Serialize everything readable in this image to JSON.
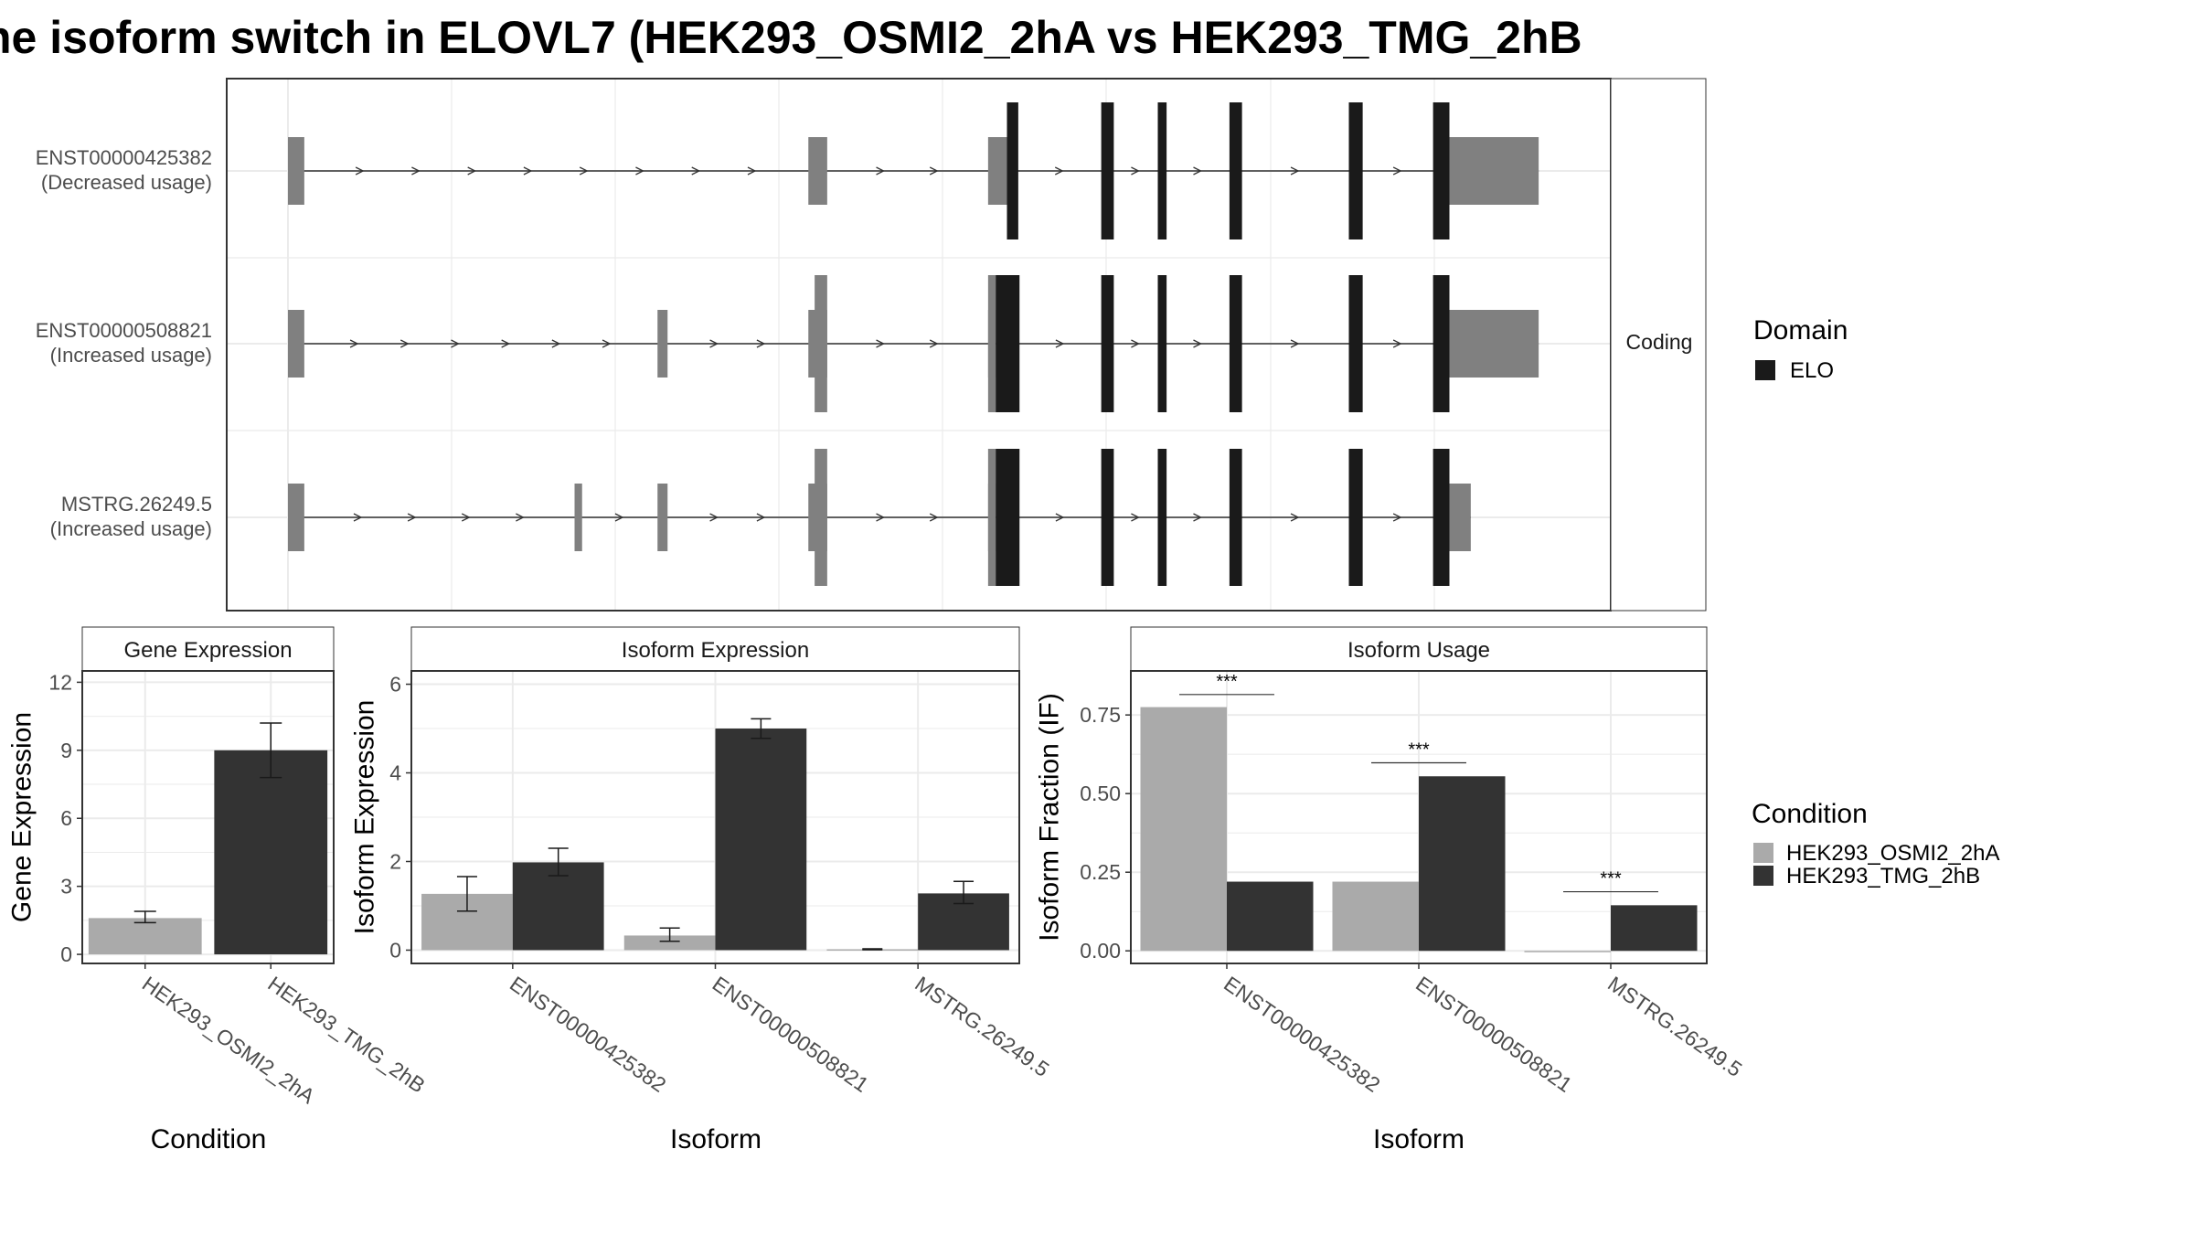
{
  "title": "he isoform switch in ELOVL7 (HEK293_OSMI2_2hA vs HEK293_TMG_2hB",
  "colors": {
    "cond_a": "#aaaaaa",
    "cond_b": "#333333",
    "utr": "#808080",
    "domain": "#1a1a1a",
    "grid": "#ebebeb",
    "strip_bg": "#ffffff"
  },
  "structure": {
    "strip_label": "Coding",
    "legend_title": "Domain",
    "legend_items": [
      "ELO"
    ],
    "genomic_range": [
      0,
      100
    ],
    "transcripts": [
      {
        "id": "ENST00000425382",
        "note": "(Decreased usage)",
        "utr_blocks": [
          [
            0,
            1.3
          ],
          [
            41.4,
            42.9
          ],
          [
            55.7,
            57.2
          ],
          [
            91.3,
            99.5
          ]
        ],
        "cds_blocks": [
          [
            57.2,
            58.1
          ],
          [
            64.7,
            65.7
          ],
          [
            69.2,
            69.9
          ],
          [
            74.9,
            75.9
          ],
          [
            84.4,
            85.5
          ],
          [
            91.1,
            92.4
          ]
        ]
      },
      {
        "id": "ENST00000508821",
        "note": "(Increased usage)",
        "utr_blocks": [
          [
            0,
            1.3
          ],
          [
            29.4,
            30.2
          ],
          [
            41.4,
            42.9
          ],
          [
            55.7,
            56.3
          ],
          [
            91.3,
            99.5
          ]
        ],
        "cds_blocks": [
          [
            56.3,
            58.2
          ],
          [
            64.7,
            65.7
          ],
          [
            69.2,
            69.9
          ],
          [
            74.9,
            75.9
          ],
          [
            84.4,
            85.5
          ],
          [
            91.1,
            92.4
          ]
        ]
      },
      {
        "id": "MSTRG.26249.5",
        "note": "(Increased usage)",
        "utr_blocks": [
          [
            0,
            1.3
          ],
          [
            22.8,
            23.4
          ],
          [
            29.4,
            30.2
          ],
          [
            41.4,
            42.9
          ],
          [
            55.7,
            56.3
          ],
          [
            91.3,
            94.1
          ]
        ],
        "cds_blocks": [
          [
            56.3,
            58.2
          ],
          [
            64.7,
            65.7
          ],
          [
            69.2,
            69.9
          ],
          [
            74.9,
            75.9
          ],
          [
            84.4,
            85.5
          ],
          [
            91.1,
            92.4
          ]
        ]
      }
    ]
  },
  "chart_data": [
    {
      "type": "bar",
      "title": "Gene Expression",
      "xlabel": "Condition",
      "ylabel": "Gene Expression",
      "categories": [
        "HEK293_OSMI2_2hA",
        "HEK293_TMG_2hB"
      ],
      "ylim": [
        -0.4,
        12.5
      ],
      "yticks": [
        0,
        3,
        6,
        9,
        12
      ],
      "ytick_labels": [
        "0",
        "3",
        "6",
        "9",
        "12"
      ],
      "values": [
        1.6,
        9.0
      ],
      "err_low": [
        1.4,
        7.8
      ],
      "err_high": [
        1.9,
        10.2
      ]
    },
    {
      "type": "bar",
      "title": "Isoform Expression",
      "xlabel": "Isoform",
      "ylabel": "Isoform Expression",
      "categories": [
        "ENST00000425382",
        "ENST00000508821",
        "MSTRG.26249.5"
      ],
      "ylim": [
        -0.3,
        6.3
      ],
      "yticks": [
        0,
        2,
        4,
        6
      ],
      "ytick_labels": [
        "0",
        "2",
        "4",
        "6"
      ],
      "series": [
        {
          "name": "HEK293_OSMI2_2hA",
          "values": [
            1.27,
            0.33,
            0.02
          ],
          "err_low": [
            0.88,
            0.2,
            0.01
          ],
          "err_high": [
            1.66,
            0.5,
            0.03
          ]
        },
        {
          "name": "HEK293_TMG_2hB",
          "values": [
            1.98,
            5.0,
            1.28
          ],
          "err_low": [
            1.68,
            4.78,
            1.05
          ],
          "err_high": [
            2.3,
            5.22,
            1.55
          ]
        }
      ]
    },
    {
      "type": "bar",
      "title": "Isoform Usage",
      "xlabel": "Isoform",
      "ylabel": "Isoform Fraction (IF)",
      "categories": [
        "ENST00000425382",
        "ENST00000508821",
        "MSTRG.26249.5"
      ],
      "ylim": [
        -0.04,
        0.89
      ],
      "yticks": [
        0,
        0.25,
        0.5,
        0.75
      ],
      "ytick_labels": [
        "0.00",
        "0.25",
        "0.50",
        "0.75"
      ],
      "series": [
        {
          "name": "HEK293_OSMI2_2hA",
          "values": [
            0.775,
            0.22,
            0.0
          ]
        },
        {
          "name": "HEK293_TMG_2hB",
          "values": [
            0.22,
            0.555,
            0.145
          ]
        }
      ],
      "annotations": [
        {
          "category": 0,
          "text": "***",
          "y": 0.815
        },
        {
          "category": 1,
          "text": "***",
          "y": 0.598
        },
        {
          "category": 2,
          "text": "***",
          "y": 0.188
        }
      ]
    }
  ],
  "condition_legend": {
    "title": "Condition",
    "items": [
      "HEK293_OSMI2_2hA",
      "HEK293_TMG_2hB"
    ]
  }
}
